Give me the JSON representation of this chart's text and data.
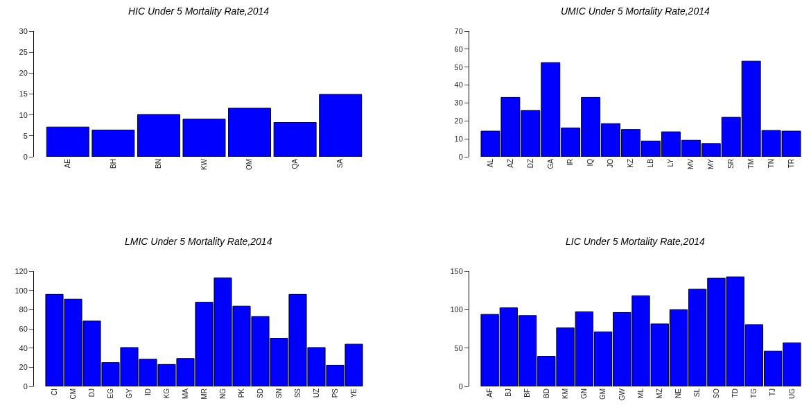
{
  "chart_data": [
    {
      "type": "bar",
      "title": "HIC Under 5 Mortality Rate,2014",
      "categories": [
        "AE",
        "BH",
        "BN",
        "KW",
        "OM",
        "QA",
        "SA"
      ],
      "values": [
        7.1,
        6.4,
        10.1,
        9.0,
        11.6,
        8.2,
        14.9
      ],
      "color": "#0000ff",
      "ylim": [
        0,
        30
      ],
      "yticks": [
        0,
        5,
        10,
        15,
        20,
        25,
        30
      ]
    },
    {
      "type": "bar",
      "title": "UMIC Under 5 Mortality Rate,2014",
      "categories": [
        "AL",
        "AZ",
        "DZ",
        "GA",
        "IR",
        "IQ",
        "JO",
        "KZ",
        "LB",
        "LY",
        "MV",
        "MY",
        "SR",
        "TM",
        "TN",
        "TR"
      ],
      "values": [
        14.3,
        33.1,
        25.8,
        52.5,
        16.1,
        33.1,
        18.5,
        15.2,
        8.8,
        13.9,
        9.2,
        7.4,
        22.0,
        53.3,
        14.7,
        14.3
      ],
      "color": "#0000ff",
      "ylim": [
        0,
        70
      ],
      "yticks": [
        0,
        10,
        20,
        30,
        40,
        50,
        60,
        70
      ]
    },
    {
      "type": "bar",
      "title": "LMIC Under 5 Mortality Rate,2014",
      "categories": [
        "CI",
        "CM",
        "DJ",
        "EG",
        "GY",
        "ID",
        "KG",
        "MA",
        "MR",
        "NG",
        "PK",
        "SD",
        "SN",
        "SS",
        "UZ",
        "PS",
        "YE"
      ],
      "values": [
        95.9,
        90.9,
        68.1,
        24.8,
        40.5,
        28.3,
        22.9,
        29.1,
        87.7,
        113,
        83.7,
        72.8,
        50.2,
        95.9,
        40.5,
        22.1,
        44.0
      ],
      "color": "#0000ff",
      "ylim": [
        0,
        120
      ],
      "yticks": [
        0,
        20,
        40,
        60,
        80,
        100,
        120
      ]
    },
    {
      "type": "bar",
      "title": "LIC Under 5 Mortality Rate,2014",
      "categories": [
        "AF",
        "BJ",
        "BF",
        "BD",
        "KM",
        "GN",
        "GM",
        "GW",
        "ML",
        "MZ",
        "NE",
        "SL",
        "SO",
        "TD",
        "TG",
        "TJ",
        "UG"
      ],
      "values": [
        93.8,
        102.3,
        92.3,
        39.2,
        76.2,
        97.2,
        71.1,
        96.3,
        118.1,
        81.4,
        99.9,
        126.6,
        140.9,
        142.7,
        80.5,
        45.9,
        56.8
      ],
      "color": "#0000ff",
      "ylim": [
        0,
        150
      ],
      "yticks": [
        0,
        50,
        100,
        150
      ]
    }
  ]
}
